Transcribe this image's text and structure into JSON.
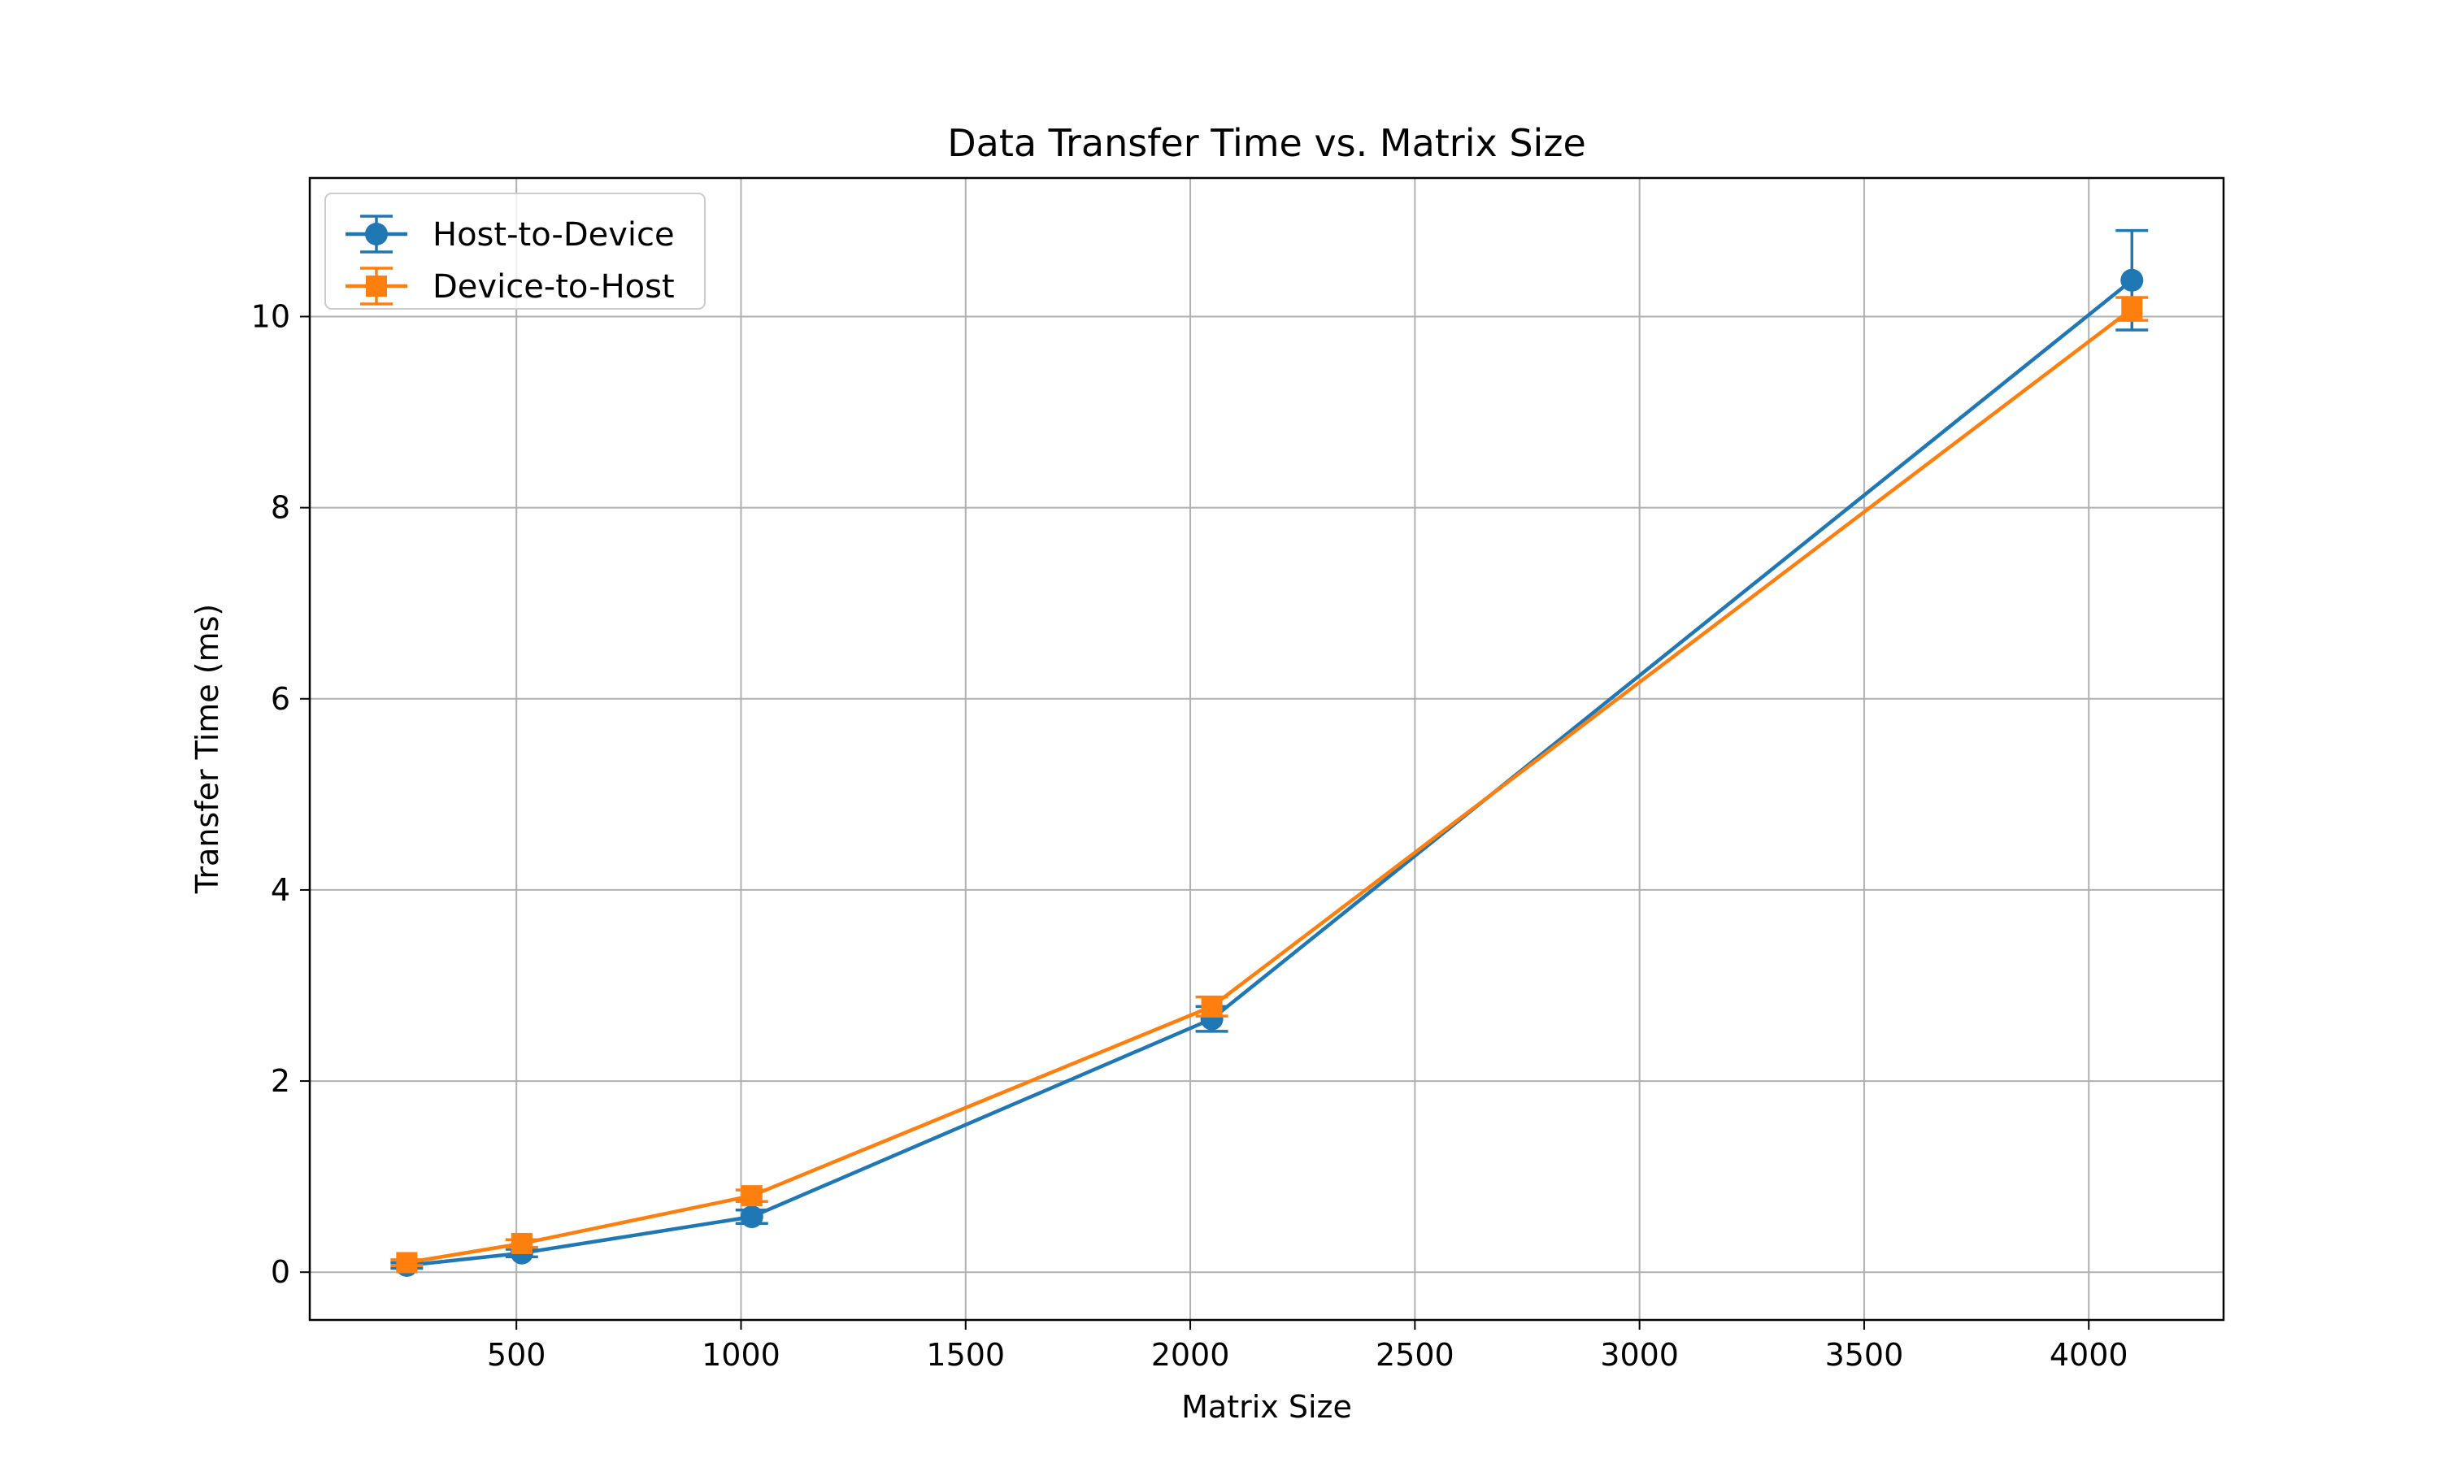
{
  "chart_data": {
    "type": "line",
    "title": "Data Transfer Time vs. Matrix Size",
    "xlabel": "Matrix Size",
    "ylabel": "Transfer Time (ms)",
    "xlim": [
      40,
      4300
    ],
    "ylim": [
      -0.5,
      11.45
    ],
    "x_ticks": [
      500,
      1000,
      1500,
      2000,
      2500,
      3000,
      3500,
      4000
    ],
    "y_ticks": [
      0,
      2,
      4,
      6,
      8,
      10
    ],
    "grid": true,
    "legend_position": "top-left",
    "x": [
      256,
      512,
      1024,
      2048,
      4096
    ],
    "series": [
      {
        "name": "Host-to-Device",
        "color": "#1f77b4",
        "marker": "circle",
        "values": [
          0.07,
          0.2,
          0.58,
          2.65,
          10.38
        ],
        "errors": [
          0.03,
          0.04,
          0.07,
          0.13,
          0.52
        ]
      },
      {
        "name": "Device-to-Host",
        "color": "#ff7f0e",
        "marker": "square",
        "values": [
          0.1,
          0.3,
          0.8,
          2.78,
          10.08
        ],
        "errors": [
          0.03,
          0.04,
          0.06,
          0.1,
          0.12
        ]
      }
    ]
  }
}
